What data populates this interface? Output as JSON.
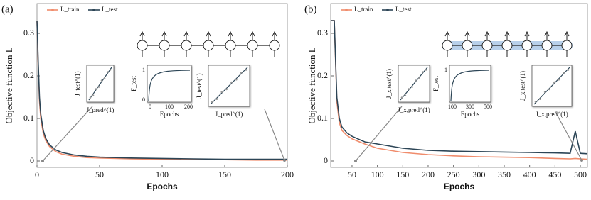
{
  "chart_data": [
    {
      "type": "line",
      "panel_label": "(a)",
      "xlabel": "Epochs",
      "ylabel": "Objective function L",
      "x": [
        0,
        1,
        2,
        3,
        5,
        7,
        10,
        15,
        20,
        30,
        40,
        50,
        75,
        100,
        125,
        150,
        175,
        200
      ],
      "series": [
        {
          "name": "L_train",
          "color": "#f08c6c",
          "values": [
            0.33,
            0.22,
            0.14,
            0.1,
            0.065,
            0.048,
            0.034,
            0.022,
            0.016,
            0.011,
            0.008,
            0.007,
            0.005,
            0.004,
            0.003,
            0.003,
            0.002,
            0.002
          ]
        },
        {
          "name": "L_test",
          "color": "#2c4556",
          "values": [
            0.33,
            0.23,
            0.15,
            0.11,
            0.072,
            0.053,
            0.038,
            0.026,
            0.02,
            0.014,
            0.011,
            0.009,
            0.007,
            0.006,
            0.005,
            0.004,
            0.004,
            0.004
          ]
        }
      ],
      "xlim": [
        0,
        200
      ],
      "ylim": [
        -0.015,
        0.37
      ],
      "xticks": [
        0,
        50,
        100,
        150,
        200
      ],
      "yticks": [
        0,
        0.1,
        0.2,
        0.3
      ],
      "insets": [
        {
          "x_label": "J_pred^(1)",
          "y_label": "J_test^(1)"
        },
        {
          "x_label": "Epochs",
          "y_label": "F_test",
          "xticks": [
            0,
            100,
            200
          ],
          "yticks": [
            0,
            1
          ]
        },
        {
          "x_label": "J_pred^(1)",
          "y_label": "J_test^(1)"
        }
      ]
    },
    {
      "type": "line",
      "panel_label": "(b)",
      "xlabel": "Epochs",
      "ylabel": "Objective function L",
      "x": [
        8,
        15,
        20,
        25,
        30,
        40,
        50,
        75,
        100,
        150,
        200,
        250,
        300,
        350,
        400,
        450,
        480,
        490,
        500,
        514
      ],
      "series": [
        {
          "name": "L_train",
          "color": "#f08c6c",
          "values": [
            0.33,
            0.33,
            0.14,
            0.09,
            0.072,
            0.06,
            0.052,
            0.04,
            0.03,
            0.02,
            0.015,
            0.012,
            0.01,
            0.009,
            0.008,
            0.006,
            0.005,
            0.006,
            0.005,
            0.004
          ]
        },
        {
          "name": "L_test",
          "color": "#2c4556",
          "values": [
            0.33,
            0.33,
            0.15,
            0.1,
            0.08,
            0.066,
            0.058,
            0.045,
            0.04,
            0.03,
            0.025,
            0.023,
            0.022,
            0.021,
            0.02,
            0.019,
            0.018,
            0.07,
            0.018,
            0.017
          ]
        }
      ],
      "xlim": [
        8,
        514
      ],
      "ylim": [
        -0.015,
        0.37
      ],
      "xticks": [
        50,
        100,
        150,
        200,
        250,
        300,
        350,
        400,
        450,
        500
      ],
      "yticks": [
        0,
        0.1,
        0.2,
        0.3
      ],
      "insets": [
        {
          "x_label": "J_x,pred^(1)",
          "y_label": "J_x,test^(1)"
        },
        {
          "x_label": "Epochs",
          "y_label": "F_test",
          "xticks": [
            100,
            300,
            500
          ],
          "yticks": [
            1
          ]
        },
        {
          "x_label": "J_x,pred^(1)",
          "y_label": "J_x,test^(1)"
        }
      ]
    }
  ]
}
